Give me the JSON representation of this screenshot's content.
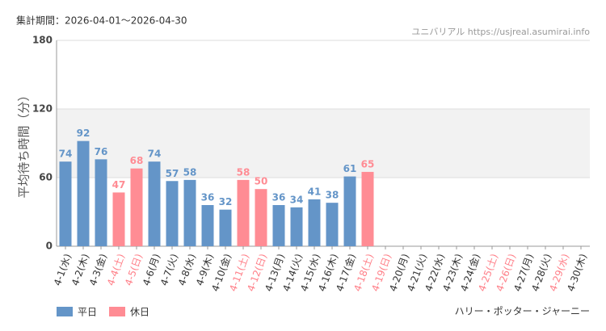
{
  "chart_data": {
    "type": "bar",
    "subtitle": "集計期間：2026-04-01～2026-04-30",
    "source": "ユニバリアル  https://usjreal.asumirai.info",
    "y_label": "平均待ち時間（分）",
    "footer": "ハリー・ポッター・ジャーニー",
    "categories": [
      "4-1(水)",
      "4-2(木)",
      "4-3(金)",
      "4-4(土)",
      "4-5(日)",
      "4-6(月)",
      "4-7(火)",
      "4-8(水)",
      "4-9(木)",
      "4-10(金)",
      "4-11(土)",
      "4-12(日)",
      "4-13(月)",
      "4-14(火)",
      "4-15(水)",
      "4-16(木)",
      "4-17(金)",
      "4-18(土)",
      "4-19(日)",
      "4-20(月)",
      "4-21(火)",
      "4-22(水)",
      "4-23(木)",
      "4-24(金)",
      "4-25(土)",
      "4-26(日)",
      "4-27(月)",
      "4-28(火)",
      "4-29(水)",
      "4-30(木)"
    ],
    "category_colors": [
      "#333",
      "#333",
      "#333",
      "#ff7f88",
      "#ff7f88",
      "#333",
      "#333",
      "#333",
      "#333",
      "#333",
      "#ff7f88",
      "#ff7f88",
      "#333",
      "#333",
      "#333",
      "#333",
      "#333",
      "#ff7f88",
      "#ff7f88",
      "#333",
      "#333",
      "#333",
      "#333",
      "#333",
      "#ff7f88",
      "#ff7f88",
      "#333",
      "#333",
      "#ff7f88",
      "#333"
    ],
    "series": [
      {
        "name": "平日",
        "color": "#6495c8",
        "values": [
          74,
          92,
          76,
          null,
          null,
          74,
          57,
          58,
          36,
          32,
          null,
          null,
          36,
          34,
          41,
          38,
          61,
          null,
          null,
          null,
          null,
          null,
          null,
          null,
          null,
          null,
          null,
          null,
          null,
          null
        ]
      },
      {
        "name": "休日",
        "color": "#ff8c94",
        "values": [
          null,
          null,
          null,
          47,
          68,
          null,
          null,
          null,
          null,
          null,
          58,
          50,
          null,
          null,
          null,
          null,
          null,
          65,
          null,
          null,
          null,
          null,
          null,
          null,
          null,
          null,
          null,
          null,
          null,
          null
        ]
      }
    ],
    "ylim": [
      0,
      180
    ],
    "yticks": [
      0,
      60,
      120,
      180
    ],
    "grid": true,
    "shade": [
      60,
      120
    ]
  }
}
